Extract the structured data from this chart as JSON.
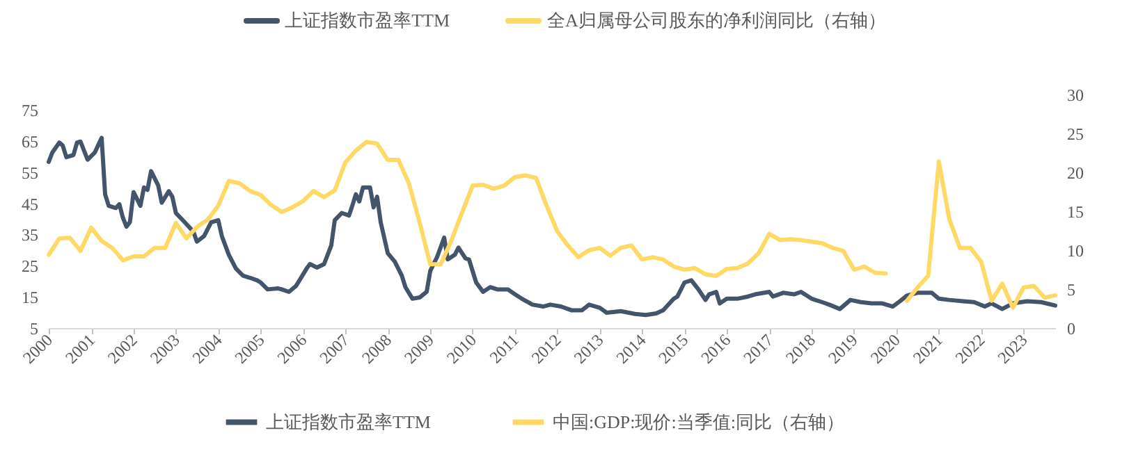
{
  "chart_data": {
    "type": "line",
    "xlim": [
      "2000-01",
      "2023-10"
    ],
    "xticks": [
      "2000",
      "2001",
      "2002",
      "2003",
      "2004",
      "2005",
      "2006",
      "2007",
      "2008",
      "2009",
      "2010",
      "2011",
      "2012",
      "2013",
      "2014",
      "2015",
      "2016",
      "2017",
      "2018",
      "2019",
      "2020",
      "2021",
      "2022",
      "2023"
    ],
    "ylim": [
      5,
      75
    ],
    "yticks": [
      5,
      15,
      25,
      35,
      45,
      55,
      65,
      75
    ],
    "y2lim": [
      0,
      30
    ],
    "y2ticks": [
      0,
      5,
      10,
      15,
      20,
      25,
      30
    ],
    "legend": "bottom",
    "grid": false,
    "marker": "none",
    "line_style": "solid",
    "series": [
      {
        "name": "上证指数市盈率TTM",
        "color": "#44546a",
        "x": [
          "2000-01",
          "2000-02",
          "2000-04",
          "2000-05",
          "2000-06",
          "2000-08",
          "2000-09",
          "2000-10",
          "2000-12",
          "2001-02",
          "2001-04",
          "2001-05",
          "2001-06",
          "2001-08",
          "2001-09",
          "2001-10",
          "2001-11",
          "2001-12",
          "2002-01",
          "2002-03",
          "2002-04",
          "2002-05",
          "2002-06",
          "2002-08",
          "2002-09",
          "2002-11",
          "2002-12",
          "2003-01",
          "2003-03",
          "2003-06",
          "2003-07",
          "2003-09",
          "2003-11",
          "2004-01",
          "2004-02",
          "2004-04",
          "2004-06",
          "2004-08",
          "2004-10",
          "2004-12",
          "2005-01",
          "2005-03",
          "2005-06",
          "2005-07",
          "2005-09",
          "2005-11",
          "2005-12",
          "2006-02",
          "2006-03",
          "2006-05",
          "2006-07",
          "2006-09",
          "2006-10",
          "2006-12",
          "2007-02",
          "2007-03",
          "2007-04",
          "2007-05",
          "2007-06",
          "2007-08",
          "2007-09",
          "2007-10",
          "2007-11",
          "2008-01",
          "2008-03",
          "2008-05",
          "2008-06",
          "2008-08",
          "2008-10",
          "2008-12",
          "2009-01",
          "2009-03",
          "2009-05",
          "2009-06",
          "2009-08",
          "2009-09",
          "2009-11",
          "2009-12",
          "2010-02",
          "2010-04",
          "2010-06",
          "2010-08",
          "2010-11",
          "2011-01",
          "2011-03",
          "2011-06",
          "2011-09",
          "2011-11",
          "2012-02",
          "2012-05",
          "2012-08",
          "2012-10",
          "2013-01",
          "2013-03",
          "2013-07",
          "2013-11",
          "2014-02",
          "2014-05",
          "2014-07",
          "2014-10",
          "2014-11",
          "2015-01",
          "2015-03",
          "2015-05",
          "2015-07",
          "2015-08",
          "2015-10",
          "2015-11",
          "2016-01",
          "2016-04",
          "2016-07",
          "2016-09",
          "2017-01",
          "2017-02",
          "2017-05",
          "2017-08",
          "2017-10",
          "2018-01",
          "2018-04",
          "2018-06",
          "2018-09",
          "2018-12",
          "2019-03",
          "2019-06",
          "2019-09",
          "2019-12",
          "2020-02",
          "2020-04",
          "2020-07",
          "2020-11",
          "2021-01",
          "2021-04",
          "2021-08",
          "2021-11",
          "2022-02",
          "2022-04",
          "2022-07",
          "2022-10",
          "2023-02",
          "2023-06",
          "2023-10"
        ],
        "values": [
          58.3,
          61.3,
          64.5,
          63.5,
          59.8,
          60.5,
          64.5,
          64.8,
          59.0,
          61.3,
          66.0,
          47.9,
          44.2,
          43.5,
          44.7,
          40.4,
          37.5,
          39.0,
          48.6,
          44.2,
          50.1,
          49.3,
          55.3,
          50.8,
          45.2,
          48.9,
          47.1,
          41.9,
          39.6,
          35.9,
          32.7,
          34.5,
          38.9,
          39.6,
          34.5,
          28.5,
          24.1,
          21.8,
          21.1,
          20.3,
          19.6,
          17.4,
          17.7,
          17.4,
          16.6,
          18.5,
          20.3,
          24.1,
          25.5,
          24.4,
          25.5,
          31.5,
          39.6,
          41.9,
          41.1,
          44.2,
          47.9,
          45.6,
          50.1,
          50.1,
          43.7,
          47.1,
          38.9,
          29.0,
          26.3,
          21.8,
          18.1,
          14.4,
          14.8,
          16.6,
          23.3,
          27.8,
          34.0,
          27.0,
          28.5,
          30.8,
          27.3,
          27.0,
          19.6,
          16.6,
          18.1,
          17.4,
          17.4,
          15.8,
          14.4,
          12.5,
          11.9,
          12.5,
          11.9,
          10.7,
          10.7,
          12.5,
          11.5,
          9.9,
          10.4,
          9.5,
          9.2,
          9.7,
          10.7,
          14.4,
          15.1,
          19.6,
          20.3,
          17.4,
          14.0,
          15.8,
          16.6,
          12.9,
          14.4,
          14.4,
          15.1,
          15.8,
          16.6,
          15.1,
          16.3,
          15.8,
          16.6,
          14.4,
          13.3,
          12.5,
          11.1,
          14.0,
          13.3,
          12.9,
          12.9,
          11.9,
          13.6,
          15.4,
          16.3,
          16.3,
          14.4,
          14.0,
          13.6,
          13.3,
          11.9,
          12.9,
          11.1,
          12.9,
          13.6,
          13.3,
          12.2
        ]
      },
      {
        "name": "全A归属母公司股东的净利润同比（右轴）",
        "color": "#ffd966"
      },
      {
        "name": "中国:GDP:现价:当季值:同比（右轴）",
        "color": "#ffd966",
        "axis": "y2",
        "x": [
          "2000-01",
          "2000-04",
          "2000-07",
          "2000-10",
          "2001-01",
          "2001-04",
          "2001-07",
          "2001-10",
          "2002-01",
          "2002-04",
          "2002-07",
          "2002-10",
          "2003-01",
          "2003-04",
          "2003-07",
          "2003-10",
          "2004-01",
          "2004-04",
          "2004-07",
          "2004-10",
          "2005-01",
          "2005-04",
          "2005-07",
          "2005-10",
          "2006-01",
          "2006-04",
          "2006-07",
          "2006-10",
          "2007-01",
          "2007-04",
          "2007-07",
          "2007-10",
          "2008-01",
          "2008-04",
          "2008-07",
          "2008-10",
          "2009-01",
          "2009-04",
          "2009-07",
          "2009-10",
          "2010-01",
          "2010-04",
          "2010-07",
          "2010-10",
          "2011-01",
          "2011-04",
          "2011-07",
          "2011-10",
          "2012-01",
          "2012-04",
          "2012-07",
          "2012-10",
          "2013-01",
          "2013-04",
          "2013-07",
          "2013-10",
          "2014-01",
          "2014-04",
          "2014-07",
          "2014-10",
          "2015-01",
          "2015-04",
          "2015-07",
          "2015-10",
          "2016-01",
          "2016-04",
          "2016-07",
          "2016-10",
          "2017-01",
          "2017-04",
          "2017-07",
          "2017-10",
          "2018-01",
          "2018-04",
          "2018-07",
          "2018-10",
          "2019-01",
          "2019-04",
          "2019-07",
          "2019-10",
          "2020-01",
          "2020-04",
          "2020-07",
          "2020-10",
          "2021-01",
          "2021-04",
          "2021-07",
          "2021-10",
          "2022-01",
          "2022-04",
          "2022-07",
          "2022-10",
          "2023-01",
          "2023-04",
          "2023-07",
          "2023-10"
        ],
        "values": [
          9.4,
          11.5,
          11.6,
          9.9,
          12.9,
          11.2,
          10.3,
          8.7,
          9.2,
          9.2,
          10.3,
          10.3,
          13.5,
          11.5,
          13.0,
          13.9,
          15.7,
          18.9,
          18.6,
          17.6,
          17.1,
          15.8,
          14.9,
          15.5,
          16.3,
          17.6,
          16.8,
          17.7,
          21.3,
          22.8,
          23.9,
          23.7,
          21.6,
          21.6,
          18.6,
          13.6,
          8.2,
          8.2,
          11.2,
          14.8,
          18.3,
          18.4,
          17.9,
          18.3,
          19.4,
          19.6,
          19.3,
          15.7,
          12.4,
          10.6,
          9.1,
          10.0,
          10.3,
          9.3,
          10.3,
          10.6,
          8.8,
          9.1,
          8.8,
          7.9,
          7.5,
          7.7,
          6.9,
          6.7,
          7.6,
          7.7,
          8.3,
          9.6,
          12.1,
          11.3,
          11.4,
          11.3,
          11.1,
          10.9,
          10.3,
          9.9,
          7.5,
          7.9,
          7.1,
          7.0,
          null,
          3.5,
          5.2,
          6.7,
          21.4,
          14.0,
          10.3,
          10.3,
          8.5,
          3.5,
          5.7,
          2.6,
          5.2,
          5.4,
          3.9,
          4.2
        ]
      }
    ]
  }
}
